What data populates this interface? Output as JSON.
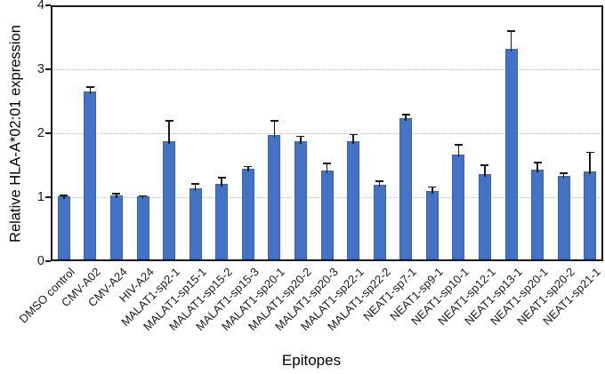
{
  "figure": {
    "background_color": "#ffffff",
    "text_color": "#1a1a1a"
  },
  "chart_data": {
    "type": "bar",
    "title": "",
    "xlabel": "Epitopes",
    "ylabel": "Relative HLA-A*02:01 expression",
    "ylim": [
      0,
      4
    ],
    "yticks": [
      0,
      1,
      2,
      3,
      4
    ],
    "gridline_values": [
      1,
      2,
      3
    ],
    "grid_style": "dotted",
    "legend_position": "none",
    "bar_color": "#4472C4",
    "bar_edge_color": "#3563B1",
    "error_bar_color": "#1a1a1a",
    "error_bar_direction": "upper",
    "categories": [
      "DMSO control",
      "CMV-A02",
      "CMV-A24",
      "HIV-A24",
      "MALAT1-sp2-1",
      "MALAT1-sp15-1",
      "MALAT1-sp15-2",
      "MALAT1-sp15-3",
      "MALAT1-sp20-1",
      "MALAT1-sp20-2",
      "MALAT1-sp20-3",
      "MALAT1-sp22-1",
      "MALAT1-sp22-2",
      "NEAT1-sp7-1",
      "NEAT1-sp9-1",
      "NEAT1-sp10-1",
      "NEAT1-sp12-1",
      "NEAT1-sp13-1",
      "NEAT1-sp20-1",
      "NEAT1-sp20-2",
      "NEAT1-sp21-1"
    ],
    "values": [
      1.01,
      2.65,
      1.03,
      1.01,
      1.88,
      1.14,
      1.21,
      1.45,
      1.97,
      1.87,
      1.41,
      1.88,
      1.19,
      2.23,
      1.1,
      1.67,
      1.36,
      3.32,
      1.43,
      1.34,
      1.4
    ],
    "errors": [
      0.02,
      0.07,
      0.03,
      0.01,
      0.31,
      0.07,
      0.1,
      0.03,
      0.22,
      0.08,
      0.12,
      0.1,
      0.06,
      0.06,
      0.06,
      0.15,
      0.14,
      0.28,
      0.11,
      0.03,
      0.3
    ]
  }
}
